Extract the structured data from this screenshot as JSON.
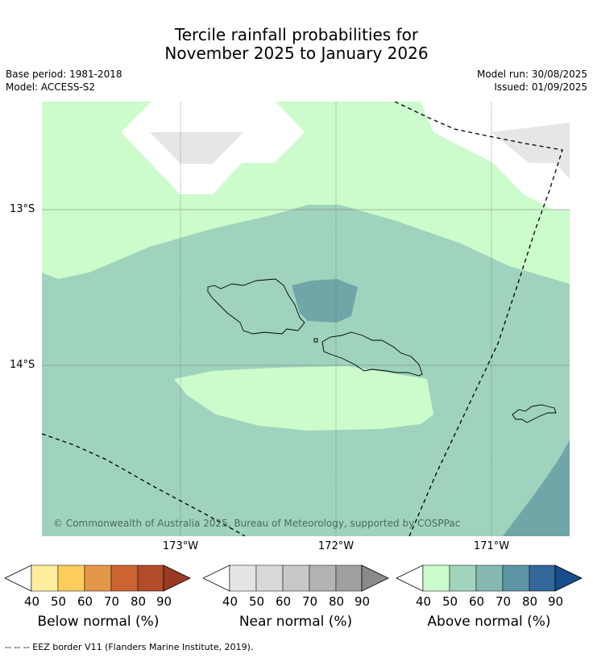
{
  "header": {
    "title_line1": "Tercile rainfall probabilities for",
    "title_line2": "November 2025 to January 2026",
    "base_period": "Base period: 1981-2018",
    "model": "Model: ACCESS-S2",
    "model_run": "Model run: 30/08/2025",
    "issued": "Issued: 01/09/2025"
  },
  "map": {
    "lat_labels": [
      "13°S",
      "14°S"
    ],
    "lon_labels": [
      "173°W",
      "172°W",
      "171°W"
    ],
    "copyright": "© Commonwealth of Australia 2025, Bureau of Meteorology, supported by COSPPac",
    "colors": {
      "above_40": "#ccfccc",
      "above_50": "#9fd3bd",
      "above_60": "#86bab2",
      "above_70": "#70a6a8",
      "near_40": "#e6e6e6",
      "background": "#ffffff"
    }
  },
  "colorbars": {
    "ticks": [
      "40",
      "50",
      "60",
      "70",
      "80",
      "90"
    ],
    "below": {
      "label": "Below normal (%)",
      "colors": [
        "#ffeda0",
        "#fecc5c",
        "#e3974a",
        "#cd6433",
        "#b24c2b",
        "#9a3a24"
      ]
    },
    "near": {
      "label": "Near normal (%)",
      "colors": [
        "#e4e4e4",
        "#d9d9d9",
        "#c8c8c8",
        "#b3b3b3",
        "#a0a0a0",
        "#8a8a8a"
      ]
    },
    "above": {
      "label": "Above normal (%)",
      "colors": [
        "#ccfccc",
        "#a0d4bd",
        "#86bab1",
        "#5d95a4",
        "#33689b",
        "#174d8a"
      ]
    }
  },
  "footer": {
    "legend_text": "--  --  -- EEZ border V11 (Flanders Marine Institute, 2019)."
  }
}
